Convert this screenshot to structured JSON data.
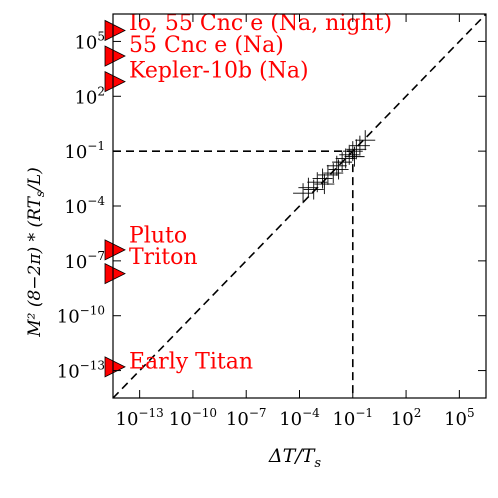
{
  "chart_data": {
    "type": "scatter",
    "xscale": "log",
    "yscale": "log",
    "xlim_log10": [
      -14.5,
      6.5
    ],
    "ylim_log10": [
      -14.5,
      6.5
    ],
    "xticks_log10": [
      -13,
      -10,
      -7,
      -4,
      -1,
      2,
      5
    ],
    "yticks_log10": [
      -13,
      -10,
      -7,
      -4,
      -1,
      2,
      5
    ],
    "xlabel": "ΔT/T",
    "xlabel_sub": "s",
    "ylabel_html": "M² (8−2π) * (RT",
    "ylabel_sub": "s",
    "ylabel_tail": "/L)",
    "grid": false,
    "reference_line": {
      "label": "",
      "from_log10": [
        -14.5,
        -14.5
      ],
      "to_log10": [
        6.5,
        6.5
      ],
      "style": "dashed"
    },
    "threshold_lines": {
      "x_log10": -1,
      "y_log10": -1,
      "style": "dashed"
    },
    "plus_points_log10": [
      [
        -3.8,
        -3.3
      ],
      [
        -3.5,
        -3.0
      ],
      [
        -3.2,
        -3.1
      ],
      [
        -3.0,
        -2.7
      ],
      [
        -2.7,
        -2.5
      ],
      [
        -2.4,
        -2.3
      ],
      [
        -2.1,
        -2.2
      ],
      [
        -1.9,
        -1.8
      ],
      [
        -1.6,
        -1.6
      ],
      [
        -1.4,
        -1.4
      ],
      [
        -1.2,
        -1.2
      ],
      [
        -1.0,
        -1.0
      ],
      [
        -0.8,
        -0.9
      ],
      [
        -0.6,
        -0.7
      ],
      [
        -0.3,
        -0.4
      ],
      [
        -2.6,
        -2.8
      ],
      [
        -1.8,
        -2.0
      ],
      [
        -0.9,
        -1.3
      ]
    ],
    "annotations": [
      {
        "label": "Io, 55 Cnc e (Na, night)",
        "y_log10": 5.6,
        "color": "#ff0000"
      },
      {
        "label": "55 Cnc e (Na)",
        "y_log10": 4.2,
        "color": "#ff0000"
      },
      {
        "label": "Kepler-10b (Na)",
        "y_log10": 2.8,
        "color": "#ff0000"
      },
      {
        "label": "Pluto",
        "y_log10": -6.4,
        "color": "#ff0000"
      },
      {
        "label": "Triton",
        "y_log10": -7.7,
        "color": "#ff0000"
      },
      {
        "label": "Early Titan",
        "y_log10": -12.8,
        "color": "#ff0000"
      }
    ],
    "annotation_text_lines": [
      {
        "text": "Io, 55 Cnc e (Na, night)",
        "y_log10": 6.0
      },
      {
        "text": "55 Cnc e (Na)",
        "y_log10": 4.8
      },
      {
        "text": "Kepler-10b (Na)",
        "y_log10": 3.4
      },
      {
        "text": "Pluto",
        "y_log10": -5.6
      },
      {
        "text": "Triton",
        "y_log10": -6.8
      },
      {
        "text": "Early Titan",
        "y_log10": -12.5
      }
    ]
  }
}
